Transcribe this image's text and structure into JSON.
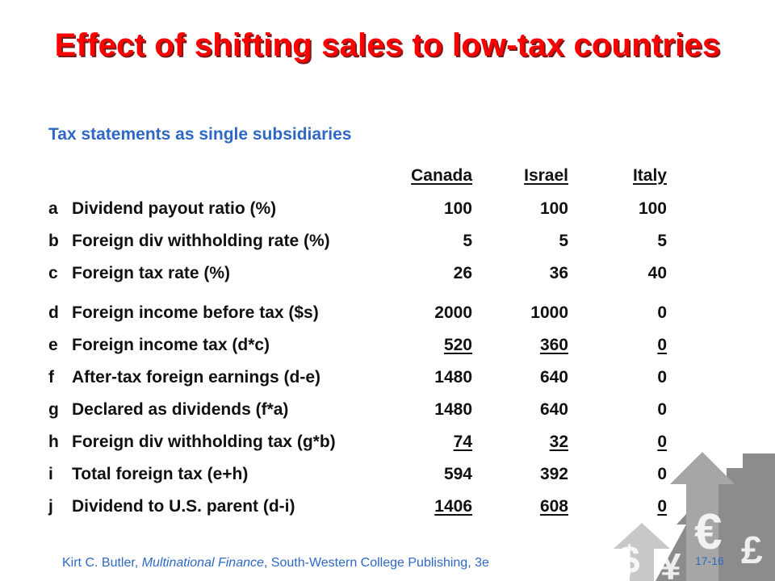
{
  "slide": {
    "title": "Effect of shifting sales to low-tax countries",
    "subtitle": "Tax statements as single subsidiaries"
  },
  "table": {
    "headers": [
      "Canada",
      "Israel",
      "Italy"
    ],
    "rows": [
      {
        "letter": "a",
        "label": "Dividend payout ratio (%)",
        "values": [
          "100",
          "100",
          "100"
        ],
        "underline": false
      },
      {
        "letter": "b",
        "label": "Foreign div withholding rate (%)",
        "values": [
          "5",
          "5",
          "5"
        ],
        "underline": false
      },
      {
        "letter": "c",
        "label": "Foreign tax rate (%)",
        "values": [
          "26",
          "36",
          "40"
        ],
        "underline": false
      },
      {
        "letter": "d",
        "label": "Foreign income before tax ($s)",
        "values": [
          "2000",
          "1000",
          "0"
        ],
        "underline": false
      },
      {
        "letter": "e",
        "label": "Foreign income tax (d*c)",
        "values": [
          "520",
          "360",
          "0"
        ],
        "underline": true
      },
      {
        "letter": "f",
        "label": "After-tax foreign earnings (d-e)",
        "values": [
          "1480",
          "640",
          "0"
        ],
        "underline": false
      },
      {
        "letter": "g",
        "label": "Declared as dividends (f*a)",
        "values": [
          "1480",
          "640",
          "0"
        ],
        "underline": false
      },
      {
        "letter": "h",
        "label": "Foreign div withholding tax (g*b)",
        "values": [
          "74",
          "32",
          "0"
        ],
        "underline": true
      },
      {
        "letter": "i",
        "label": "Total foreign tax (e+h)",
        "values": [
          "594",
          "392",
          "0"
        ],
        "underline": false
      },
      {
        "letter": "j",
        "label": "Dividend to U.S. parent (d-i)",
        "values": [
          "1406",
          "608",
          "0"
        ],
        "underline": true
      }
    ]
  },
  "footer": {
    "author": "Kirt C. Butler, ",
    "book": "Multinational Finance",
    "publisher": ", South-Western College Publishing, 3e",
    "page": "17-16"
  },
  "decoration": {
    "symbols": [
      "$",
      "¥",
      "€",
      "£"
    ],
    "colors": {
      "title": "#ff0000",
      "accent": "#2f68c4",
      "deco": "#8c8c8c"
    }
  }
}
